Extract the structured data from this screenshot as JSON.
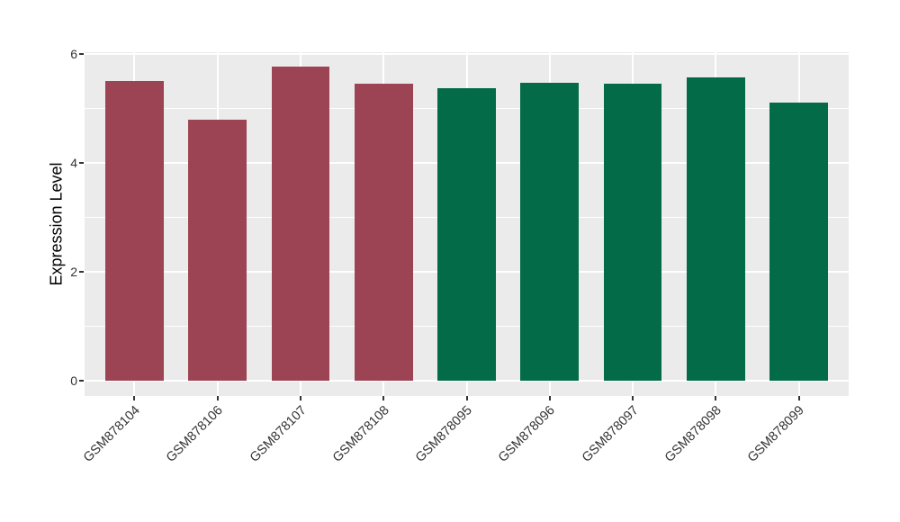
{
  "chart_data": {
    "type": "bar",
    "title": "",
    "xlabel": "",
    "ylabel": "Expression Level",
    "categories": [
      "GSM878104",
      "GSM878106",
      "GSM878107",
      "GSM878108",
      "GSM878095",
      "GSM878096",
      "GSM878097",
      "GSM878098",
      "GSM878099"
    ],
    "values": [
      5.51,
      4.79,
      5.77,
      5.46,
      5.37,
      5.47,
      5.45,
      5.57,
      5.11
    ],
    "bar_colors": [
      "#9C4454",
      "#9C4454",
      "#9C4454",
      "#9C4454",
      "#046B48",
      "#046B48",
      "#046B48",
      "#046B48",
      "#046B48"
    ],
    "group_colors": {
      "red_group": "#9C4454",
      "green_group": "#046B48"
    },
    "ylim": [
      -0.29,
      6.04
    ],
    "yticks": [
      0,
      2,
      4,
      6
    ],
    "yticks_minor": [
      1,
      3,
      5
    ],
    "bar_width_fraction": 0.7,
    "grid": "on",
    "legend": "none",
    "panel_background": "#EBEBEB",
    "grid_color": "#FFFFFF",
    "tick_color": "#333333",
    "axis_text_color": "#333333",
    "axis_title_color": "#000000",
    "outer_background": "#FFFFFF"
  }
}
